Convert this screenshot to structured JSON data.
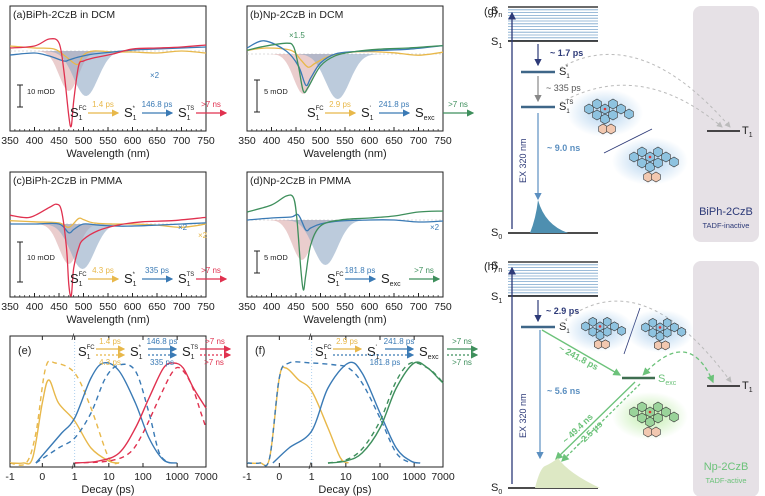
{
  "colors": {
    "yellow": "#e8b84a",
    "blue": "#3a7ab5",
    "red": "#e0314f",
    "green": "#3e8f5c",
    "pink_fill": "#d9a4a4",
    "blue_fill": "#8fa9c4",
    "navy": "#2d3a78",
    "lightgreen": "#6cc27a",
    "panel_bg": "#e6e1e6"
  },
  "chart_data": [
    {
      "id": "a",
      "type": "line",
      "panel_label": "(a)",
      "title": "BiPh-2CzB in DCM",
      "xlabel": "Wavelength (nm)",
      "xlim": [
        350,
        750
      ],
      "xticks": [
        "350",
        "400",
        "450",
        "500",
        "550",
        "600",
        "650",
        "700",
        "750"
      ],
      "scale_bar": "10 mOD",
      "annotations": [
        "×2"
      ],
      "scheme": {
        "states": [
          "S1FC",
          "S1*",
          "S1TS"
        ],
        "rates": [
          "1.4 ps",
          "146.8 ps",
          ">7 ns"
        ]
      },
      "series": [
        {
          "name": "S1FC (yellow)",
          "color": "yellow",
          "x": [
            350,
            400,
            440,
            465,
            480,
            490,
            500,
            520,
            560,
            600,
            650,
            700,
            750
          ],
          "y": [
            0.5,
            0.3,
            0.2,
            -0.6,
            -1.2,
            -1.3,
            -0.4,
            0.0,
            -0.1,
            -0.1,
            -0.2,
            0.0,
            -0.2
          ]
        },
        {
          "name": "S1* (blue)",
          "color": "blue",
          "x": [
            350,
            400,
            430,
            460,
            470,
            490,
            520,
            560,
            600,
            650,
            700,
            750
          ],
          "y": [
            -0.4,
            -0.2,
            -0.5,
            -1.0,
            -0.9,
            -0.6,
            -0.3,
            -0.1,
            0.1,
            0.2,
            0.3,
            0.4
          ]
        },
        {
          "name": "S1TS (red)",
          "color": "red",
          "x": [
            350,
            400,
            430,
            450,
            460,
            470,
            475,
            480,
            490,
            500,
            520,
            560,
            600,
            650,
            700,
            750
          ],
          "y": [
            0.3,
            0.5,
            1.2,
            0.8,
            -2,
            -6.5,
            -7.5,
            -5,
            -1.5,
            -1,
            -0.7,
            -0.3,
            0.2,
            0.3,
            0.4,
            0.6
          ]
        }
      ]
    },
    {
      "id": "b",
      "type": "line",
      "panel_label": "(b)",
      "title": "Np-2CzB in DCM",
      "xlabel": "Wavelength (nm)",
      "xlim": [
        350,
        750
      ],
      "xticks": [
        "350",
        "400",
        "450",
        "500",
        "550",
        "600",
        "650",
        "700",
        "750"
      ],
      "scale_bar": "5 mOD",
      "annotations": [
        "×1.5"
      ],
      "scheme": {
        "states": [
          "S1FC",
          "S1'",
          "Sexc"
        ],
        "rates": [
          "2.9 ps",
          "241.8 ps",
          ">7 ns"
        ]
      },
      "series": [
        {
          "name": "S1FC (yellow)",
          "color": "yellow",
          "x": [
            350,
            390,
            440,
            460,
            475,
            490,
            520,
            560,
            600,
            650,
            700,
            750
          ],
          "y": [
            0.6,
            1.0,
            0.6,
            -1.0,
            -2.2,
            -1.5,
            -0.3,
            0.3,
            0.4,
            0.2,
            -0.2,
            0.3
          ]
        },
        {
          "name": "S1' (blue)",
          "color": "blue",
          "x": [
            350,
            385,
            430,
            455,
            470,
            480,
            500,
            530,
            570,
            620,
            680,
            750
          ],
          "y": [
            1.0,
            2.2,
            0.5,
            -2,
            -5.2,
            -4,
            -1.5,
            0.0,
            0.4,
            0.6,
            0.8,
            1.4
          ]
        },
        {
          "name": "Sexc (green)",
          "color": "green",
          "x": [
            350,
            380,
            430,
            445,
            455,
            465,
            475,
            500,
            530,
            570,
            620,
            680,
            750
          ],
          "y": [
            0.6,
            1.2,
            1.8,
            1.2,
            -2,
            -6.2,
            -5.5,
            -2,
            -0.3,
            0.4,
            0.8,
            1.0,
            1.4
          ]
        }
      ]
    },
    {
      "id": "c",
      "type": "line",
      "panel_label": "(c)",
      "title": "BiPh-2CzB in PMMA",
      "xlabel": "Wavelength (nm)",
      "xlim": [
        350,
        750
      ],
      "xticks": [
        "350",
        "400",
        "450",
        "500",
        "550",
        "600",
        "650",
        "700",
        "750"
      ],
      "scale_bar": "10 mOD",
      "annotations": [
        "×2",
        "×2"
      ],
      "scheme": {
        "states": [
          "S1FC",
          "S1*",
          "S1TS"
        ],
        "rates": [
          "4.3 ps",
          "335 ps",
          ">7 ns"
        ]
      },
      "series": [
        {
          "name": "S1FC (yellow)",
          "color": "yellow",
          "x": [
            350,
            400,
            450,
            470,
            490,
            500,
            520,
            560,
            600,
            650,
            700,
            750
          ],
          "y": [
            0.3,
            0.2,
            0.1,
            -0.3,
            0.5,
            0.4,
            0.1,
            0.0,
            0.0,
            -0.1,
            -0.3,
            0.0
          ]
        },
        {
          "name": "S1* (blue)",
          "color": "blue",
          "x": [
            350,
            400,
            450,
            470,
            480,
            500,
            530,
            580,
            650,
            700,
            750
          ],
          "y": [
            0.0,
            0.0,
            0.0,
            -0.8,
            -0.5,
            0.0,
            -0.1,
            -0.2,
            -0.1,
            0.0,
            0.1
          ]
        },
        {
          "name": "S1TS (red)",
          "color": "red",
          "x": [
            350,
            390,
            430,
            445,
            455,
            465,
            470,
            475,
            480,
            490,
            500,
            530,
            570,
            620,
            680,
            750
          ],
          "y": [
            0.8,
            0.6,
            1.5,
            1.8,
            1.2,
            -2,
            -5.5,
            -6.5,
            -4,
            -2.2,
            -1.4,
            -0.6,
            -0.1,
            0.2,
            0.3,
            0.6
          ]
        }
      ]
    },
    {
      "id": "d",
      "type": "line",
      "panel_label": "(d)",
      "title": "Np-2CzB in PMMA",
      "xlabel": "Wavelength (nm)",
      "xlim": [
        350,
        750
      ],
      "xticks": [
        "350",
        "400",
        "450",
        "500",
        "550",
        "600",
        "650",
        "700",
        "750"
      ],
      "scale_bar": "5 mOD",
      "annotations": [
        "×2"
      ],
      "scheme": {
        "states": [
          "S1FC",
          "Sexc"
        ],
        "rates": [
          "181.8 ps",
          ">7 ns"
        ]
      },
      "series": [
        {
          "name": "S1FC (blue)",
          "color": "blue",
          "x": [
            350,
            400,
            440,
            455,
            470,
            480,
            500,
            540,
            600,
            650,
            700,
            750
          ],
          "y": [
            0.0,
            0.2,
            0.3,
            0.5,
            -1.0,
            -0.8,
            -0.4,
            -0.1,
            0.0,
            0.0,
            -0.2,
            -0.1
          ]
        },
        {
          "name": "Sexc (green)",
          "color": "green",
          "x": [
            350,
            400,
            430,
            445,
            452,
            460,
            465,
            470,
            480,
            500,
            540,
            600,
            650,
            700,
            750
          ],
          "y": [
            0.8,
            1.5,
            2.4,
            2.2,
            0,
            -5,
            -7,
            -5.5,
            -2.5,
            -0.6,
            0.0,
            0.2,
            0.4,
            0.8,
            0.9
          ]
        }
      ]
    },
    {
      "id": "e",
      "type": "line",
      "panel_label": "(e)",
      "xlabel": "Decay (ps)",
      "xticks": [
        "-1",
        "0",
        "1",
        "10",
        "100",
        "1000",
        "7000"
      ],
      "scheme": {
        "states": [
          "S1FC",
          "S1*",
          "S1TS"
        ],
        "rates_solid": [
          "1.4 ps",
          "146.8 ps",
          ">7 ns"
        ],
        "rates_dashed": [
          "4.3 ps",
          "335 ps",
          ">7 ns"
        ]
      },
      "series": [
        {
          "name": "S1FC DCM",
          "color": "yellow",
          "dashed": false,
          "x": [
            -1,
            -0.6,
            -0.3,
            0,
            0.2,
            0.5,
            1,
            3,
            10,
            20
          ],
          "y": [
            0,
            0,
            0.05,
            0.6,
            0.83,
            0.6,
            0.42,
            0.15,
            0.02,
            0
          ]
        },
        {
          "name": "S1FC PMMA",
          "color": "yellow",
          "dashed": true,
          "x": [
            -1,
            -0.5,
            -0.2,
            0.1,
            0.4,
            1,
            3,
            10,
            20
          ],
          "y": [
            0,
            0,
            0.3,
            0.95,
            1.0,
            0.9,
            0.55,
            0.05,
            0
          ]
        },
        {
          "name": "S1* DCM",
          "color": "blue",
          "dashed": false,
          "x": [
            -0.2,
            0.2,
            0.6,
            1,
            3,
            7,
            20,
            60,
            150,
            400,
            1000
          ],
          "y": [
            0,
            0.15,
            0.3,
            0.45,
            0.85,
            1.0,
            0.92,
            0.6,
            0.25,
            0.03,
            0
          ]
        },
        {
          "name": "S1* PMMA",
          "color": "blue",
          "dashed": true,
          "x": [
            -0.2,
            0.5,
            1,
            3,
            8,
            20,
            60,
            150,
            300,
            600
          ],
          "y": [
            0,
            0.15,
            0.25,
            0.5,
            0.85,
            0.98,
            0.92,
            0.5,
            0.1,
            0
          ]
        },
        {
          "name": "S1TS DCM",
          "color": "red",
          "dashed": false,
          "x": [
            1,
            5,
            20,
            60,
            150,
            400,
            800,
            1500,
            3000,
            7000
          ],
          "y": [
            0,
            0.02,
            0.1,
            0.35,
            0.65,
            0.95,
            1.0,
            0.95,
            0.75,
            0.55
          ]
        },
        {
          "name": "S1TS PMMA",
          "color": "red",
          "dashed": true,
          "x": [
            1,
            10,
            40,
            100,
            300,
            700,
            1200,
            2500,
            5000,
            7000
          ],
          "y": [
            0,
            0.02,
            0.1,
            0.3,
            0.65,
            0.9,
            0.95,
            0.8,
            0.5,
            0.35
          ]
        }
      ]
    },
    {
      "id": "f",
      "type": "line",
      "panel_label": "(f)",
      "xlabel": "Decay (ps)",
      "xticks": [
        "-1",
        "0",
        "1",
        "10",
        "100",
        "1000",
        "7000"
      ],
      "scheme": {
        "states": [
          "S1FC",
          "S1'",
          "Sexc"
        ],
        "rates_solid": [
          "2.9 ps",
          "241.8 ps",
          ">7 ns"
        ],
        "rates_dashed": [
          "181.8 ps",
          ">7 ns"
        ]
      },
      "series": [
        {
          "name": "S1FC DCM",
          "color": "yellow",
          "dashed": false,
          "x": [
            -1,
            -0.6,
            -0.3,
            0,
            0.2,
            0.6,
            1,
            3,
            7,
            12
          ],
          "y": [
            0,
            0,
            0.05,
            0.85,
            0.95,
            0.83,
            0.72,
            0.35,
            0.05,
            0
          ]
        },
        {
          "name": "S1' DCM",
          "color": "blue",
          "dashed": false,
          "x": [
            -0.2,
            0.3,
            1,
            3,
            12,
            30,
            100,
            300,
            800,
            1500
          ],
          "y": [
            0,
            0.15,
            0.32,
            0.75,
            1.0,
            0.9,
            0.5,
            0.15,
            0.02,
            0
          ]
        },
        {
          "name": "S1FC PMMA",
          "color": "blue",
          "dashed": true,
          "x": [
            -1,
            -0.6,
            -0.3,
            0,
            0.3,
            1,
            5,
            12,
            30,
            100,
            300,
            800
          ],
          "y": [
            0,
            0,
            0.05,
            0.85,
            1.0,
            1.0,
            0.98,
            0.95,
            0.8,
            0.45,
            0.1,
            0
          ]
        },
        {
          "name": "Sexc DCM",
          "color": "green",
          "dashed": false,
          "x": [
            3,
            10,
            30,
            100,
            300,
            1000,
            2500,
            5000,
            7000
          ],
          "y": [
            0,
            0.02,
            0.1,
            0.35,
            0.75,
            1.0,
            0.95,
            0.85,
            0.8
          ]
        },
        {
          "name": "Sexc PMMA",
          "color": "green",
          "dashed": true,
          "x": [
            3,
            10,
            30,
            100,
            300,
            800,
            2500,
            5000,
            7000
          ],
          "y": [
            0,
            0.03,
            0.14,
            0.42,
            0.82,
            1.0,
            0.95,
            0.86,
            0.8
          ]
        }
      ]
    }
  ],
  "diagram_g": {
    "panel_label": "(g)",
    "levels": {
      "sn": "Sn",
      "s1": "S1",
      "s0": "S0",
      "t1": "T1",
      "s1star": "S1*",
      "s1ts": "S1TS"
    },
    "excitation": "EX 320 nm",
    "rates": [
      "~ 1.7 ps",
      "~ 335 ps",
      "~ 9.0 ns"
    ],
    "molecule": "BiPh-2CzB",
    "tag": "TADF-inactive"
  },
  "diagram_h": {
    "panel_label": "(h)",
    "levels": {
      "sn": "Sn",
      "s1": "S1",
      "s0": "S0",
      "t1": "T1",
      "s1prime": "S1'",
      "sexc": "Sexc"
    },
    "excitation": "EX 320 nm",
    "rates": [
      "~ 2.9 ps",
      "~ 241.8 ps",
      "~ 5.6 ns",
      "~ 49.4 ns",
      "~ 2.5 μs"
    ],
    "molecule": "Np-2CzB",
    "tag": "TADF-active"
  }
}
